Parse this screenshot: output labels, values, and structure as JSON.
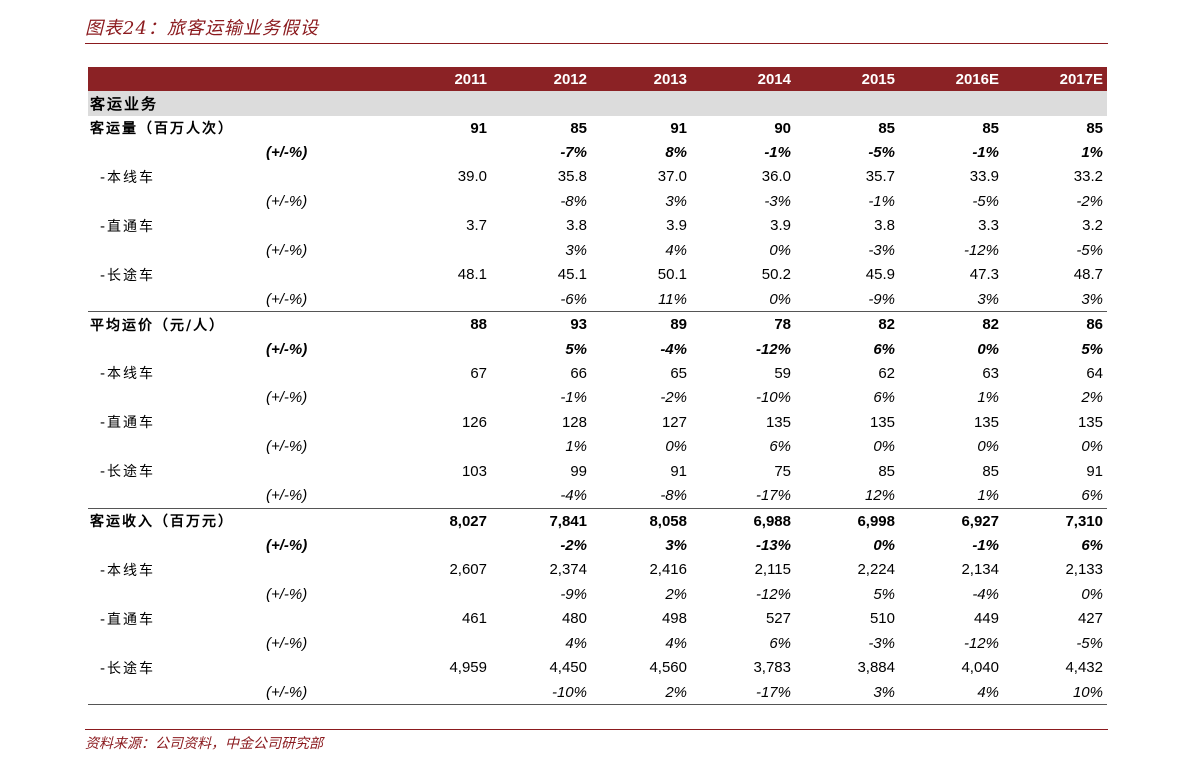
{
  "title": "图表24：旅客运输业务假设",
  "source": "资料来源：公司资料，中金公司研究部",
  "header": [
    "",
    "2011",
    "2012",
    "2013",
    "2014",
    "2015",
    "2016E",
    "2017E"
  ],
  "section": "客运业务",
  "rows": [
    {
      "label": "客运量（百万人次）",
      "kind": "main",
      "values": [
        "91",
        "85",
        "91",
        "90",
        "85",
        "85",
        "85"
      ]
    },
    {
      "label": "(+/-%)",
      "kind": "pct-bold",
      "values": [
        "",
        "-7%",
        "8%",
        "-1%",
        "-5%",
        "-1%",
        "1%"
      ]
    },
    {
      "label": "-本线车",
      "kind": "sub",
      "values": [
        "39.0",
        "35.8",
        "37.0",
        "36.0",
        "35.7",
        "33.9",
        "33.2"
      ]
    },
    {
      "label": "(+/-%)",
      "kind": "pct",
      "values": [
        "",
        "-8%",
        "3%",
        "-3%",
        "-1%",
        "-5%",
        "-2%"
      ]
    },
    {
      "label": "-直通车",
      "kind": "sub",
      "values": [
        "3.7",
        "3.8",
        "3.9",
        "3.9",
        "3.8",
        "3.3",
        "3.2"
      ]
    },
    {
      "label": "(+/-%)",
      "kind": "pct",
      "values": [
        "",
        "3%",
        "4%",
        "0%",
        "-3%",
        "-12%",
        "-5%"
      ]
    },
    {
      "label": "-长途车",
      "kind": "sub",
      "values": [
        "48.1",
        "45.1",
        "50.1",
        "50.2",
        "45.9",
        "47.3",
        "48.7"
      ]
    },
    {
      "label": "(+/-%)",
      "kind": "pct",
      "values": [
        "",
        "-6%",
        "11%",
        "0%",
        "-9%",
        "3%",
        "3%"
      ]
    },
    {
      "label": "平均运价（元/人）",
      "kind": "main",
      "values": [
        "88",
        "93",
        "89",
        "78",
        "82",
        "82",
        "86"
      ]
    },
    {
      "label": "(+/-%)",
      "kind": "pct-bold",
      "values": [
        "",
        "5%",
        "-4%",
        "-12%",
        "6%",
        "0%",
        "5%"
      ]
    },
    {
      "label": "-本线车",
      "kind": "sub",
      "values": [
        "67",
        "66",
        "65",
        "59",
        "62",
        "63",
        "64"
      ]
    },
    {
      "label": "(+/-%)",
      "kind": "pct",
      "values": [
        "",
        "-1%",
        "-2%",
        "-10%",
        "6%",
        "1%",
        "2%"
      ]
    },
    {
      "label": "-直通车",
      "kind": "sub",
      "values": [
        "126",
        "128",
        "127",
        "135",
        "135",
        "135",
        "135"
      ]
    },
    {
      "label": "(+/-%)",
      "kind": "pct",
      "values": [
        "",
        "1%",
        "0%",
        "6%",
        "0%",
        "0%",
        "0%"
      ]
    },
    {
      "label": "-长途车",
      "kind": "sub",
      "values": [
        "103",
        "99",
        "91",
        "75",
        "85",
        "85",
        "91"
      ]
    },
    {
      "label": "(+/-%)",
      "kind": "pct",
      "values": [
        "",
        "-4%",
        "-8%",
        "-17%",
        "12%",
        "1%",
        "6%"
      ]
    },
    {
      "label": "客运收入（百万元）",
      "kind": "main",
      "values": [
        "8,027",
        "7,841",
        "8,058",
        "6,988",
        "6,998",
        "6,927",
        "7,310"
      ]
    },
    {
      "label": "(+/-%)",
      "kind": "pct-bold",
      "values": [
        "",
        "-2%",
        "3%",
        "-13%",
        "0%",
        "-1%",
        "6%"
      ]
    },
    {
      "label": "-本线车",
      "kind": "sub",
      "values": [
        "2,607",
        "2,374",
        "2,416",
        "2,115",
        "2,224",
        "2,134",
        "2,133"
      ]
    },
    {
      "label": "(+/-%)",
      "kind": "pct",
      "values": [
        "",
        "-9%",
        "2%",
        "-12%",
        "5%",
        "-4%",
        "0%"
      ]
    },
    {
      "label": "-直通车",
      "kind": "sub",
      "values": [
        "461",
        "480",
        "498",
        "527",
        "510",
        "449",
        "427"
      ]
    },
    {
      "label": "(+/-%)",
      "kind": "pct",
      "values": [
        "",
        "4%",
        "4%",
        "6%",
        "-3%",
        "-12%",
        "-5%"
      ]
    },
    {
      "label": "-长途车",
      "kind": "sub",
      "values": [
        "4,959",
        "4,450",
        "4,560",
        "3,783",
        "3,884",
        "4,040",
        "4,432"
      ]
    },
    {
      "label": "(+/-%)",
      "kind": "pct",
      "values": [
        "",
        "-10%",
        "2%",
        "-17%",
        "3%",
        "4%",
        "10%"
      ]
    }
  ]
}
